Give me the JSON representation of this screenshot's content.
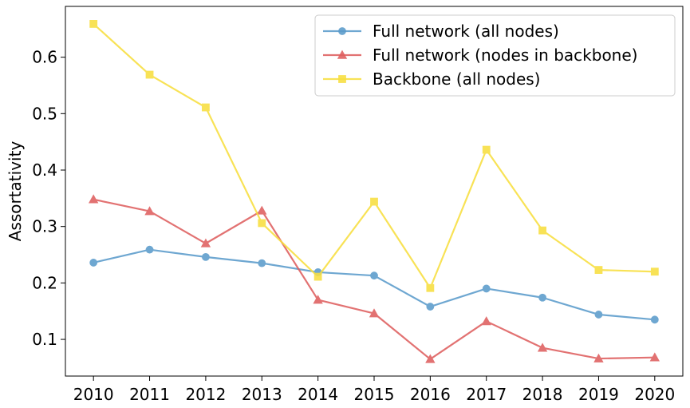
{
  "chart_data": {
    "type": "line",
    "title": "",
    "xlabel": "",
    "ylabel": "Assortativity",
    "x": [
      2010,
      2011,
      2012,
      2013,
      2014,
      2015,
      2016,
      2017,
      2018,
      2019,
      2020
    ],
    "xticks": [
      "2010",
      "2011",
      "2012",
      "2013",
      "2014",
      "2015",
      "2016",
      "2017",
      "2018",
      "2019",
      "2020"
    ],
    "yticks": [
      0.1,
      0.2,
      0.3,
      0.4,
      0.5,
      0.6
    ],
    "ytick_labels": [
      "0.1",
      "0.2",
      "0.3",
      "0.4",
      "0.5",
      "0.6"
    ],
    "xlim": [
      2009.5,
      2020.5
    ],
    "ylim": [
      0.035,
      0.69
    ],
    "grid": false,
    "legend_position": "top-right",
    "series": [
      {
        "name": "Full network (all nodes)",
        "color": "#5b9bcb",
        "marker": "circle",
        "values": [
          0.236,
          0.259,
          0.246,
          0.235,
          0.219,
          0.213,
          0.158,
          0.19,
          0.174,
          0.144,
          0.135
        ]
      },
      {
        "name": "Full network (nodes in backbone)",
        "color": "#df5f5f",
        "marker": "triangle",
        "values": [
          0.348,
          0.327,
          0.27,
          0.328,
          0.17,
          0.146,
          0.065,
          0.132,
          0.085,
          0.066,
          0.068
        ]
      },
      {
        "name": "Backbone (all nodes)",
        "color": "#f8df3f",
        "marker": "square",
        "values": [
          0.659,
          0.569,
          0.511,
          0.306,
          0.211,
          0.344,
          0.191,
          0.436,
          0.293,
          0.223,
          0.22
        ]
      }
    ]
  }
}
